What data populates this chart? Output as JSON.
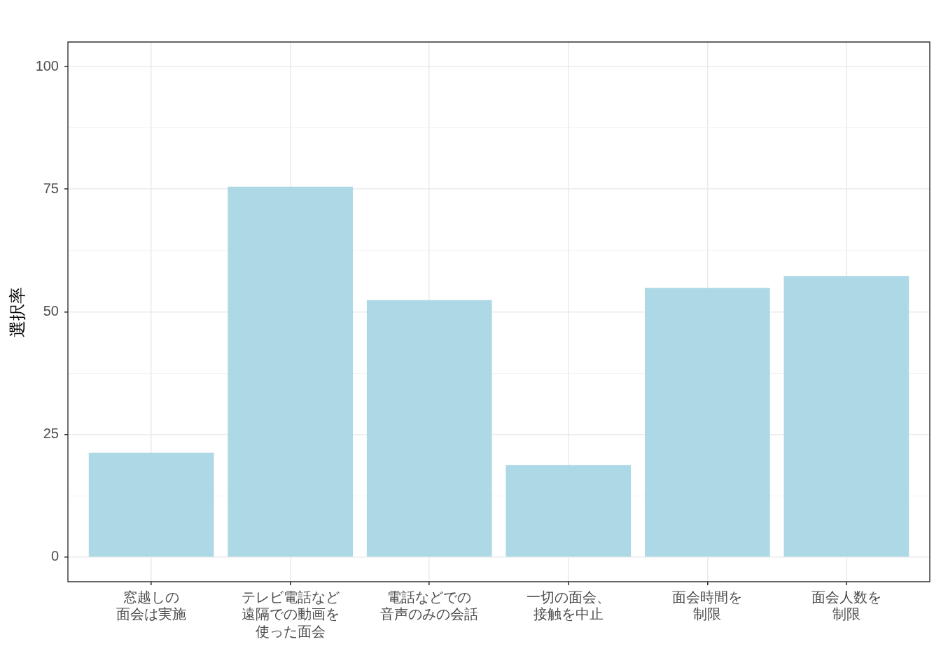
{
  "chart_data": {
    "type": "bar",
    "ylabel": "選択率",
    "categories": [
      "窓越しの面会は実施",
      "テレビ電話など遠隔での動画を使った面会",
      "電話などでの音声のみの会話",
      "一切の面会、接触を中止",
      "面会時間を制限",
      "面会人数を制限"
    ],
    "values": [
      21.3,
      75.5,
      52.4,
      18.8,
      54.9,
      57.3
    ],
    "color": "#add8e6",
    "ylim": [
      -5,
      105
    ],
    "yticks": [
      0,
      {
        "value": 12.5,
        "label": null
      },
      25,
      {
        "value": 37.5,
        "label": null
      },
      50,
      {
        "value": 62.5,
        "label": null
      },
      75,
      {
        "value": 87.5,
        "label": null
      },
      100
    ],
    "grid": true,
    "legend": false
  }
}
